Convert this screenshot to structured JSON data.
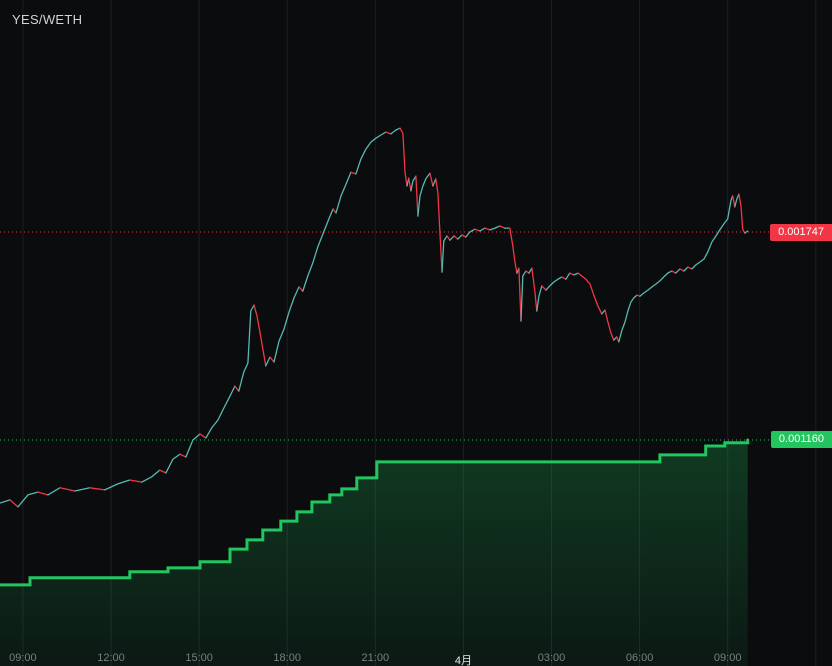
{
  "header": {
    "pair": "YES/WETH"
  },
  "colors": {
    "background": "#0a0c0e",
    "grid": "rgba(255,255,255,0.08)",
    "tick_label": "#7a7e87",
    "tick_label_emphasis": "#e4e6ea",
    "pair_label": "#d1d4dc",
    "price_up": "#59b8b2",
    "price_down": "#f23645",
    "base_green": "#22c55e"
  },
  "chart_data": {
    "type": "line",
    "title": "YES/WETH",
    "xlabel": "",
    "ylabel": "",
    "x_unit": "hours from first 09:00 tick",
    "xlim": [
      -0.78,
      27.55
    ],
    "ylim": [
      0.000522,
      0.002402
    ],
    "grid": "vertical",
    "legend": "none",
    "x_ticks": [
      {
        "t": 0,
        "label": "09:00",
        "emphasis": false
      },
      {
        "t": 3,
        "label": "12:00",
        "emphasis": false
      },
      {
        "t": 6,
        "label": "15:00",
        "emphasis": false
      },
      {
        "t": 9,
        "label": "18:00",
        "emphasis": false
      },
      {
        "t": 12,
        "label": "21:00",
        "emphasis": false
      },
      {
        "t": 15,
        "label": "4月",
        "emphasis": true
      },
      {
        "t": 18,
        "label": "03:00",
        "emphasis": false
      },
      {
        "t": 21,
        "label": "06:00",
        "emphasis": false
      },
      {
        "t": 24,
        "label": "09:00",
        "emphasis": false
      },
      {
        "t": 27,
        "label": "",
        "emphasis": false
      }
    ],
    "price_lines": [
      {
        "value": 0.001747,
        "label": "0.001747",
        "color": "#f23645",
        "style": "dotted"
      },
      {
        "value": 0.00116,
        "label": "0.001160",
        "color": "#22c55e",
        "style": "dotted"
      }
    ],
    "series": [
      {
        "name": "price",
        "type": "line",
        "up_color": "#59b8b2",
        "down_color": "#f23645",
        "width": 1.3,
        "points": [
          [
            -0.78,
            0.000982
          ],
          [
            -0.44,
            0.000991
          ],
          [
            -0.17,
            0.000971
          ],
          [
            0.17,
            0.001005
          ],
          [
            0.51,
            0.001013
          ],
          [
            0.85,
            0.001005
          ],
          [
            1.26,
            0.001025
          ],
          [
            1.77,
            0.001016
          ],
          [
            2.28,
            0.001025
          ],
          [
            2.79,
            0.001019
          ],
          [
            3.23,
            0.001036
          ],
          [
            3.64,
            0.001047
          ],
          [
            4.05,
            0.001041
          ],
          [
            4.39,
            0.001056
          ],
          [
            4.66,
            0.001075
          ],
          [
            4.87,
            0.001067
          ],
          [
            5.11,
            0.001106
          ],
          [
            5.35,
            0.00112
          ],
          [
            5.55,
            0.001112
          ],
          [
            5.79,
            0.00116
          ],
          [
            6.03,
            0.001177
          ],
          [
            6.23,
            0.001166
          ],
          [
            6.43,
            0.001194
          ],
          [
            6.64,
            0.001216
          ],
          [
            6.84,
            0.00125
          ],
          [
            7.05,
            0.001284
          ],
          [
            7.22,
            0.001312
          ],
          [
            7.35,
            0.001298
          ],
          [
            7.52,
            0.001352
          ],
          [
            7.66,
            0.001377
          ],
          [
            7.76,
            0.001524
          ],
          [
            7.87,
            0.001541
          ],
          [
            7.97,
            0.00151
          ],
          [
            8.07,
            0.001465
          ],
          [
            8.17,
            0.001417
          ],
          [
            8.27,
            0.001369
          ],
          [
            8.41,
            0.001394
          ],
          [
            8.55,
            0.00138
          ],
          [
            8.72,
            0.001439
          ],
          [
            8.89,
            0.001473
          ],
          [
            9.06,
            0.001521
          ],
          [
            9.23,
            0.001561
          ],
          [
            9.4,
            0.001592
          ],
          [
            9.53,
            0.00158
          ],
          [
            9.7,
            0.001623
          ],
          [
            9.87,
            0.00166
          ],
          [
            10.04,
            0.001705
          ],
          [
            10.21,
            0.001741
          ],
          [
            10.39,
            0.001778
          ],
          [
            10.56,
            0.001812
          ],
          [
            10.66,
            0.001801
          ],
          [
            10.83,
            0.001849
          ],
          [
            11.0,
            0.001882
          ],
          [
            11.17,
            0.001916
          ],
          [
            11.34,
            0.001911
          ],
          [
            11.51,
            0.001953
          ],
          [
            11.68,
            0.001981
          ],
          [
            11.85,
            0.002001
          ],
          [
            12.02,
            0.002012
          ],
          [
            12.19,
            0.002021
          ],
          [
            12.36,
            0.002029
          ],
          [
            12.53,
            0.002024
          ],
          [
            12.7,
            0.002035
          ],
          [
            12.84,
            0.00204
          ],
          [
            12.94,
            0.002026
          ],
          [
            13.01,
            0.001916
          ],
          [
            13.08,
            0.001877
          ],
          [
            13.14,
            0.001899
          ],
          [
            13.21,
            0.001863
          ],
          [
            13.28,
            0.001891
          ],
          [
            13.38,
            0.001905
          ],
          [
            13.45,
            0.001792
          ],
          [
            13.52,
            0.001849
          ],
          [
            13.62,
            0.001877
          ],
          [
            13.72,
            0.001897
          ],
          [
            13.86,
            0.001913
          ],
          [
            13.96,
            0.001877
          ],
          [
            14.06,
            0.001897
          ],
          [
            14.13,
            0.001857
          ],
          [
            14.2,
            0.001747
          ],
          [
            14.27,
            0.001634
          ],
          [
            14.33,
            0.001722
          ],
          [
            14.44,
            0.001736
          ],
          [
            14.54,
            0.001724
          ],
          [
            14.68,
            0.001736
          ],
          [
            14.81,
            0.001727
          ],
          [
            14.95,
            0.001739
          ],
          [
            15.08,
            0.001733
          ],
          [
            15.22,
            0.001747
          ],
          [
            15.39,
            0.001755
          ],
          [
            15.56,
            0.00175
          ],
          [
            15.73,
            0.001758
          ],
          [
            15.9,
            0.001753
          ],
          [
            16.07,
            0.001758
          ],
          [
            16.24,
            0.001764
          ],
          [
            16.41,
            0.001758
          ],
          [
            16.58,
            0.001758
          ],
          [
            16.68,
            0.001708
          ],
          [
            16.75,
            0.001665
          ],
          [
            16.82,
            0.001631
          ],
          [
            16.89,
            0.001645
          ],
          [
            16.96,
            0.001496
          ],
          [
            17.02,
            0.001623
          ],
          [
            17.13,
            0.001637
          ],
          [
            17.23,
            0.001631
          ],
          [
            17.33,
            0.001645
          ],
          [
            17.43,
            0.001581
          ],
          [
            17.5,
            0.001524
          ],
          [
            17.57,
            0.001566
          ],
          [
            17.67,
            0.001595
          ],
          [
            17.81,
            0.001583
          ],
          [
            17.94,
            0.001595
          ],
          [
            18.08,
            0.001606
          ],
          [
            18.22,
            0.001614
          ],
          [
            18.35,
            0.00162
          ],
          [
            18.49,
            0.001614
          ],
          [
            18.62,
            0.001631
          ],
          [
            18.76,
            0.001626
          ],
          [
            18.9,
            0.001631
          ],
          [
            19.03,
            0.001623
          ],
          [
            19.17,
            0.001614
          ],
          [
            19.31,
            0.0016
          ],
          [
            19.44,
            0.001569
          ],
          [
            19.58,
            0.001538
          ],
          [
            19.71,
            0.001516
          ],
          [
            19.82,
            0.001527
          ],
          [
            19.92,
            0.001493
          ],
          [
            20.02,
            0.001462
          ],
          [
            20.12,
            0.001442
          ],
          [
            20.22,
            0.001451
          ],
          [
            20.29,
            0.001437
          ],
          [
            20.39,
            0.001468
          ],
          [
            20.5,
            0.001493
          ],
          [
            20.6,
            0.001524
          ],
          [
            20.7,
            0.001549
          ],
          [
            20.8,
            0.001561
          ],
          [
            20.91,
            0.001569
          ],
          [
            21.01,
            0.001566
          ],
          [
            21.14,
            0.001575
          ],
          [
            21.28,
            0.001583
          ],
          [
            21.42,
            0.001592
          ],
          [
            21.55,
            0.0016
          ],
          [
            21.69,
            0.001609
          ],
          [
            21.82,
            0.00162
          ],
          [
            21.96,
            0.001631
          ],
          [
            22.1,
            0.001637
          ],
          [
            22.23,
            0.001631
          ],
          [
            22.37,
            0.001643
          ],
          [
            22.51,
            0.001637
          ],
          [
            22.64,
            0.001648
          ],
          [
            22.78,
            0.001643
          ],
          [
            22.91,
            0.001654
          ],
          [
            23.05,
            0.001662
          ],
          [
            23.19,
            0.001671
          ],
          [
            23.32,
            0.001691
          ],
          [
            23.46,
            0.001719
          ],
          [
            23.6,
            0.001736
          ],
          [
            23.73,
            0.001753
          ],
          [
            23.87,
            0.00177
          ],
          [
            24.0,
            0.001784
          ],
          [
            24.11,
            0.001837
          ],
          [
            24.17,
            0.001849
          ],
          [
            24.24,
            0.001818
          ],
          [
            24.31,
            0.00184
          ],
          [
            24.38,
            0.001854
          ],
          [
            24.45,
            0.00182
          ],
          [
            24.51,
            0.001755
          ],
          [
            24.58,
            0.001744
          ],
          [
            24.68,
            0.00175
          ]
        ]
      },
      {
        "name": "base-step",
        "type": "step",
        "color": "#22c55e",
        "width": 3,
        "fill_from": "rgba(34,197,94,0.25)",
        "fill_to": "rgba(34,197,94,0.07)",
        "points": [
          [
            -0.78,
            0.000751
          ],
          [
            0.24,
            0.000771
          ],
          [
            3.64,
            0.000788
          ],
          [
            4.94,
            0.000799
          ],
          [
            6.03,
            0.000816
          ],
          [
            7.05,
            0.000852
          ],
          [
            7.63,
            0.000878
          ],
          [
            8.17,
            0.000906
          ],
          [
            8.78,
            0.000931
          ],
          [
            9.33,
            0.000957
          ],
          [
            9.84,
            0.000985
          ],
          [
            10.45,
            0.001005
          ],
          [
            10.86,
            0.001022
          ],
          [
            11.37,
            0.001053
          ],
          [
            12.05,
            0.001098
          ],
          [
            21.69,
            0.001118
          ],
          [
            23.25,
            0.001143
          ],
          [
            23.9,
            0.001152
          ],
          [
            24.68,
            0.00116
          ]
        ]
      }
    ]
  }
}
